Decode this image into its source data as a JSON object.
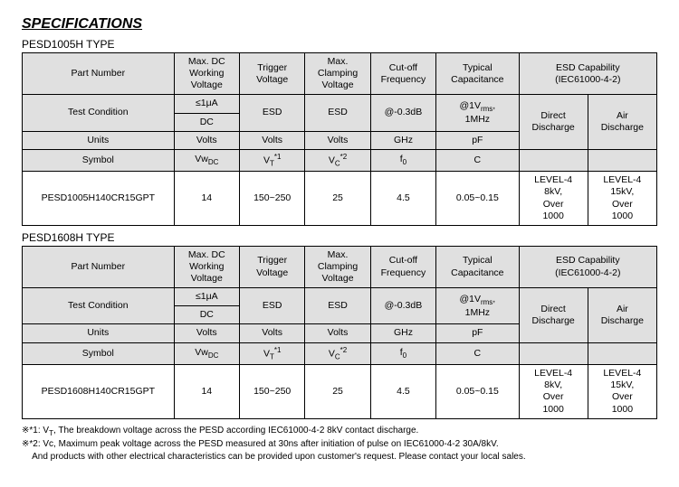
{
  "title": "SPECIFICATIONS",
  "tables": [
    {
      "subtitle": "PESD1005H TYPE",
      "partRow": {
        "partNumber": "PESD1005H140CR15GPT",
        "maxDc": "14",
        "trigger": "150~250",
        "clamp": "25",
        "cutoff": "4.5",
        "cap": "0.05~0.15",
        "esdDirect": "LEVEL-4<br>8kV,<br>Over<br>1000",
        "esdAir": "LEVEL-4<br>15kV,<br>Over<br>1000"
      }
    },
    {
      "subtitle": "PESD1608H TYPE",
      "partRow": {
        "partNumber": "PESD1608H140CR15GPT",
        "maxDc": "14",
        "trigger": "150~250",
        "clamp": "25",
        "cutoff": "4.5",
        "cap": "0.05~0.15",
        "esdDirect": "LEVEL-4<br>8kV,<br>Over<br>1000",
        "esdAir": "LEVEL-4<br>15kV,<br>Over<br>1000"
      }
    }
  ],
  "headers": {
    "partNumber": "Part Number",
    "maxDc": "Max. DC<br>Working<br>Voltage",
    "trigger": "Trigger<br>Voltage",
    "clamp": "Max.<br>Clamping<br>Voltage",
    "cutoff": "Cut-off<br>Frequency",
    "cap": "Typical<br>Capacitance",
    "esd": "ESD Capability<br>(IEC61000-4-2)",
    "testCond": "Test Condition",
    "tc_leak": "≤1μA",
    "tc_dc": "DC",
    "tc_esd": "ESD",
    "tc_db": "@-0.3dB",
    "tc_rms": "@1V<sub>rms</sub>,<br>1MHz",
    "esdDirect": "Direct<br>Discharge",
    "esdAir": "Air<br>Discharge",
    "units": "Units",
    "u_volts": "Volts",
    "u_ghz": "GHz",
    "u_pf": "pF",
    "symbol": "Symbol",
    "s_vwdc": "Vw<sub>DC</sub>",
    "s_vt": "V<sub>T</sub><sup>*1</sup>",
    "s_vc": "V<sub>C</sub><sup>*2</sup>",
    "s_f0": "f<sub>0</sub>",
    "s_c": "C"
  },
  "footnotes": {
    "f1": "※*1: V<sub>T</sub>, The breakdown voltage across the PESD according IEC61000-4-2 8kV contact discharge.",
    "f2": "※*2: Vc, Maximum peak voltage across the PESD measured at 30ns after initiation of pulse on IEC61000-4-2 30A/8kV.",
    "f3": "&nbsp;&nbsp;&nbsp;&nbsp;And products with other electrical characteristics can be provided upon customer's request. Please contact your local sales."
  }
}
